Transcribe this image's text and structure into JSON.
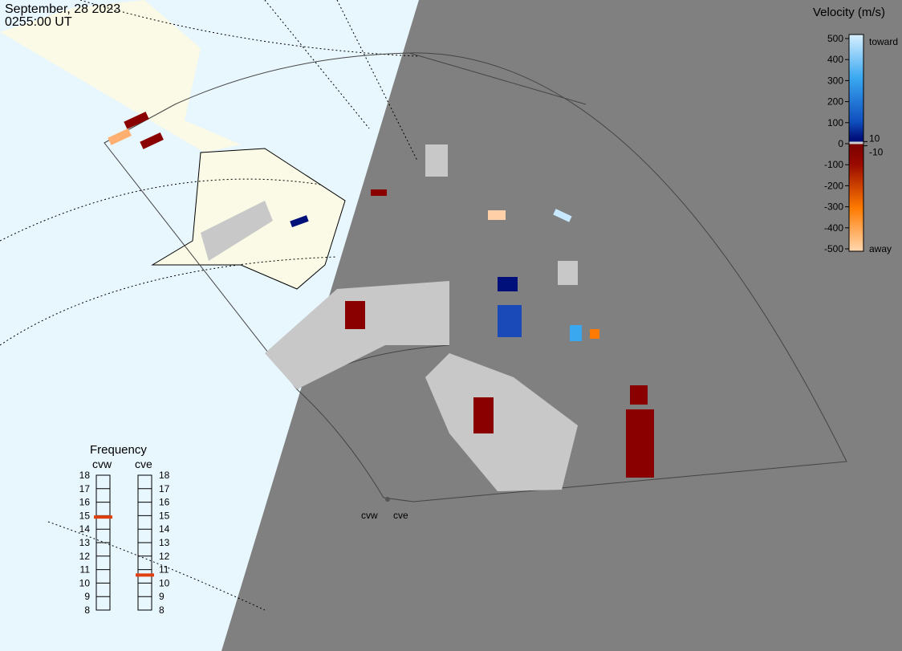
{
  "header": {
    "date": "September, 28 2023",
    "time": "0255:00 UT"
  },
  "velocity_scale": {
    "title": "Velocity (m/s)",
    "lim": [
      -500,
      500
    ],
    "ticks": [
      500,
      400,
      300,
      200,
      100,
      0,
      -100,
      -200,
      -300,
      -400,
      -500
    ],
    "inner_ticks": [
      10,
      -10
    ],
    "toward_label": "toward",
    "away_label": "away"
  },
  "frequency": {
    "title": "Frequency",
    "lim": [
      8,
      18
    ],
    "ticks": [
      8,
      9,
      10,
      11,
      12,
      13,
      14,
      15,
      16,
      17,
      18
    ],
    "radars": [
      {
        "name": "cvw",
        "value": 14.9
      },
      {
        "name": "cve",
        "value": 10.6
      }
    ]
  },
  "map_labels": [
    "cvw",
    "cve"
  ]
}
